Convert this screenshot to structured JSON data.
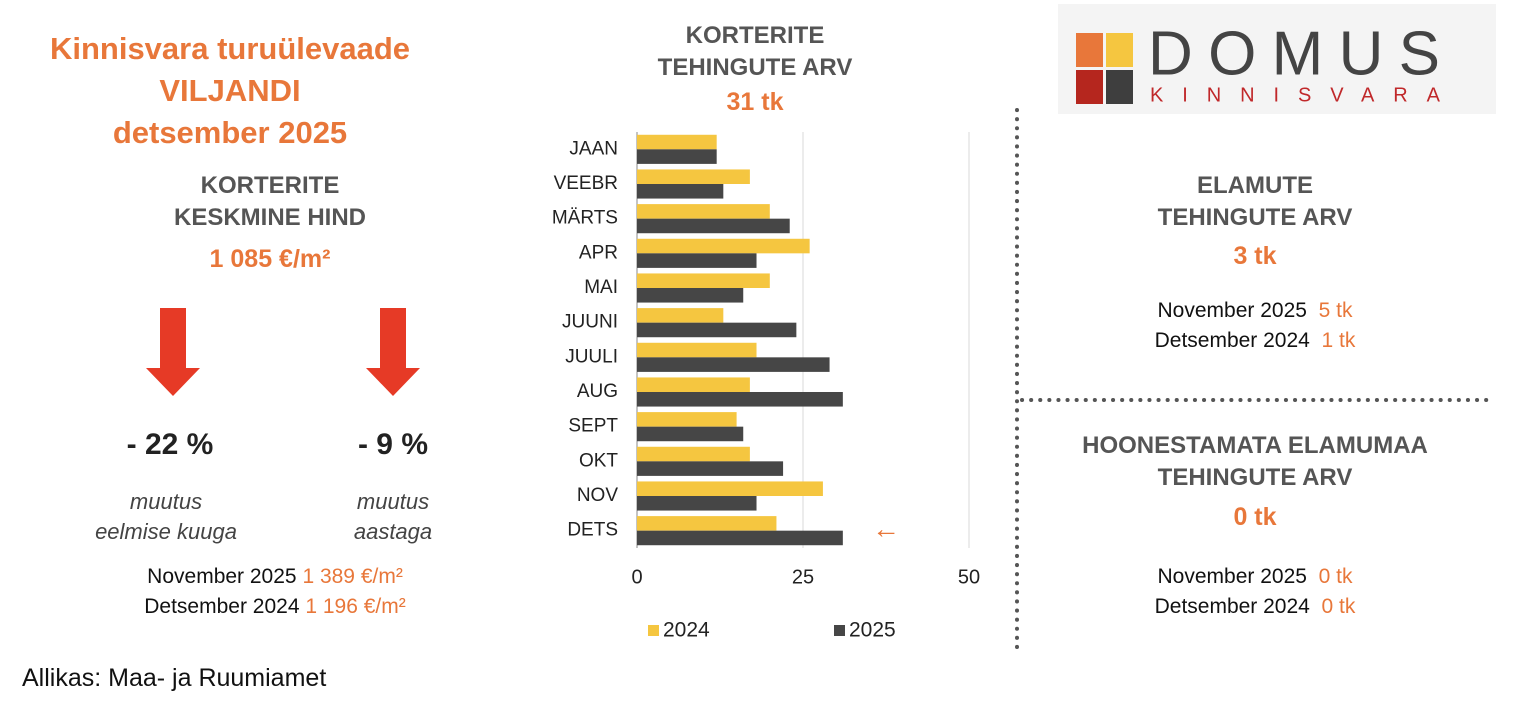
{
  "header": {
    "title_lines": [
      "Kinnisvara turuülevaade",
      "VILJANDI",
      "detsember 2025"
    ]
  },
  "price": {
    "title_lines": [
      "KORTERITE",
      "KESKMINE HIND"
    ],
    "value": "1 085 €/m²",
    "changes": [
      {
        "value": "- 22 %",
        "caption_lines": [
          "muutus",
          "eelmise kuuga"
        ]
      },
      {
        "value": "- 9 %",
        "caption_lines": [
          "muutus",
          "aastaga"
        ]
      }
    ],
    "comparisons": [
      {
        "label": "November 2025",
        "value": "1 389 €/m²"
      },
      {
        "label": "Detsember 2024",
        "value": "1 196 €/m²"
      }
    ]
  },
  "chart_data": {
    "type": "barh",
    "title_lines": [
      "KORTERITE",
      "TEHINGUTE ARV"
    ],
    "subtitle": "31 tk",
    "categories": [
      "JAAN",
      "VEEBR",
      "MÄRTS",
      "APR",
      "MAI",
      "JUUNI",
      "JUULI",
      "AUG",
      "SEPT",
      "OKT",
      "NOV",
      "DETS"
    ],
    "series": [
      {
        "name": "2024",
        "color": "#f5c640",
        "values": [
          12,
          17,
          20,
          26,
          20,
          13,
          18,
          17,
          15,
          17,
          28,
          21
        ]
      },
      {
        "name": "2025",
        "color": "#464646",
        "values": [
          12,
          13,
          23,
          18,
          16,
          24,
          29,
          31,
          16,
          22,
          18,
          31
        ]
      }
    ],
    "xlim": [
      0,
      50
    ],
    "xticks": [
      0,
      25,
      50
    ],
    "grid": true,
    "annotation": "←"
  },
  "houses": {
    "title_lines": [
      "ELAMUTE",
      "TEHINGUTE ARV"
    ],
    "value": "3 tk",
    "comparisons": [
      {
        "label": "November 2025",
        "value": "5 tk"
      },
      {
        "label": "Detsember 2024",
        "value": "1 tk"
      }
    ]
  },
  "land": {
    "title_lines": [
      "HOONESTAMATA ELAMUMAA",
      "TEHINGUTE ARV"
    ],
    "value": "0 tk",
    "comparisons": [
      {
        "label": "November 2025",
        "value": "0 tk"
      },
      {
        "label": "Detsember 2024",
        "value": "0 tk"
      }
    ]
  },
  "logo": {
    "name": "DOMUS",
    "tagline": "KINNISVARA"
  },
  "source": "Allikas: Maa- ja Ruumiamet"
}
